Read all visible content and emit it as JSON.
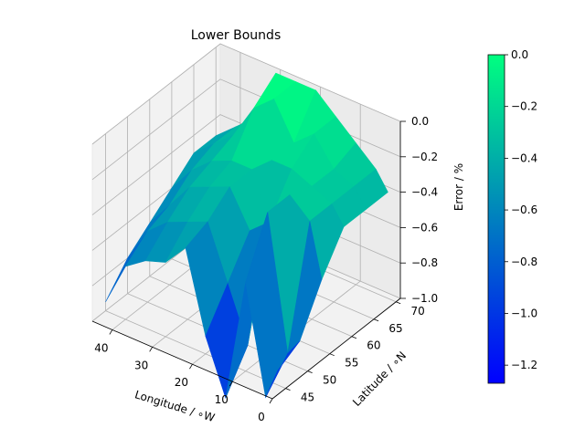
{
  "chart_data": {
    "type": "surface3d",
    "title": "Lower Bounds",
    "xlabel": "Longitude / ∘W",
    "ylabel": "Latitude / ∘N",
    "zlabel": "Error / %",
    "xlim": [
      0,
      45
    ],
    "ylim": [
      42,
      71
    ],
    "zlim": [
      -1.0,
      0.0
    ],
    "xticks": [
      0,
      10,
      20,
      30,
      40
    ],
    "yticks": [
      45,
      50,
      55,
      60,
      65,
      70
    ],
    "zticks": [
      -1.0,
      -0.8,
      -0.6,
      -0.4,
      -0.2,
      0.0
    ],
    "xtick_labels": [
      "0",
      "10",
      "20",
      "30",
      "40"
    ],
    "ytick_labels": [
      "45",
      "50",
      "55",
      "60",
      "65",
      "70"
    ],
    "ztick_labels": [
      "−1.0",
      "−0.8",
      "−0.6",
      "−0.4",
      "−0.2",
      "0.0"
    ],
    "grid": true,
    "colormap": "winter",
    "colormap_colors": [
      "#0000ff",
      "#00ff80"
    ],
    "colorbar": {
      "range": [
        -1.27,
        0.0
      ],
      "ticks": [
        -1.2,
        -1.0,
        -0.8,
        -0.6,
        -0.4,
        -0.2,
        0.0
      ],
      "tick_labels": [
        "−1.2",
        "−1.0",
        "−0.8",
        "−0.6",
        "−0.4",
        "−0.2",
        "0.0"
      ]
    },
    "surface": {
      "lons": [
        45,
        40,
        35,
        30,
        25,
        20,
        15,
        10,
        5,
        2
      ],
      "lats": [
        45,
        50,
        55,
        60,
        65,
        70
      ],
      "z": [
        [
          -0.95,
          -0.7,
          -0.62,
          -0.58,
          -0.45,
          -0.9,
          -1.2,
          -0.5,
          -1.1,
          -0.92
        ],
        [
          -0.8,
          -0.6,
          -0.5,
          -0.45,
          -0.4,
          -0.7,
          -1.0,
          -0.2,
          -0.95,
          -0.85
        ],
        [
          -0.7,
          -0.55,
          -0.4,
          -0.35,
          -0.3,
          -0.5,
          -0.4,
          -0.2,
          -0.3,
          -0.6
        ],
        [
          -0.6,
          -0.45,
          -0.35,
          -0.3,
          -0.3,
          -0.2,
          -0.2,
          -0.25,
          -0.3,
          -0.4
        ],
        [
          -0.5,
          -0.4,
          -0.3,
          -0.1,
          0.0,
          -0.2,
          -0.1,
          -0.25,
          -0.3,
          -0.4
        ],
        [
          -0.5,
          -0.4,
          -0.3,
          0.0,
          0.0,
          0.0,
          -0.1,
          -0.2,
          -0.3,
          -0.4
        ]
      ]
    }
  }
}
